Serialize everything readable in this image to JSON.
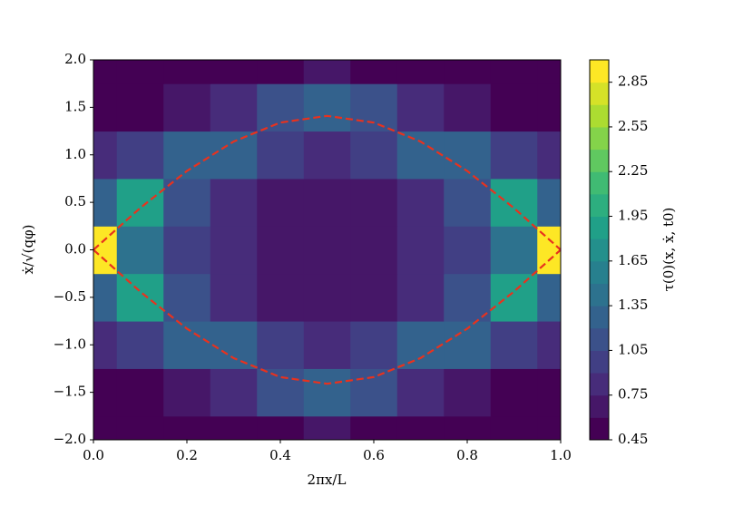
{
  "chart_data": {
    "type": "contour",
    "xlabel": "2πx/L",
    "ylabel": "ẋ/√(qφ)",
    "colorbar_label": "τ(0)(x, ẋ, t0)",
    "colormap": "viridis",
    "xlim": [
      0,
      1
    ],
    "ylim": [
      -2,
      2
    ],
    "xticks": [
      {
        "value": 0,
        "label": "0.0"
      },
      {
        "value": 0.2,
        "label": "0.2"
      },
      {
        "value": 0.4,
        "label": "0.4"
      },
      {
        "value": 0.6,
        "label": "0.6"
      },
      {
        "value": 0.8,
        "label": "0.8"
      },
      {
        "value": 1,
        "label": "1.0"
      }
    ],
    "yticks": [
      {
        "value": -2,
        "label": "−2.0"
      },
      {
        "value": -1.5,
        "label": "−1.5"
      },
      {
        "value": -1,
        "label": "−1.0"
      },
      {
        "value": -0.5,
        "label": "−0.5"
      },
      {
        "value": 0,
        "label": "0.0"
      },
      {
        "value": 0.5,
        "label": "0.5"
      },
      {
        "value": 1,
        "label": "1.0"
      },
      {
        "value": 1.5,
        "label": "1.5"
      },
      {
        "value": 2,
        "label": "2.0"
      }
    ],
    "grid_x": [
      0,
      0.1,
      0.2,
      0.3,
      0.4,
      0.5,
      0.6,
      0.7,
      0.8,
      0.9,
      1
    ],
    "grid_y": [
      -2,
      -1.5,
      -1,
      -0.5,
      0,
      0.5,
      1,
      1.5,
      2
    ],
    "z": [
      [
        0.45,
        0.45,
        0.45,
        0.5,
        0.57,
        0.6,
        0.57,
        0.5,
        0.45,
        0.45,
        0.45
      ],
      [
        0.56,
        0.59,
        0.69,
        0.86,
        1.13,
        1.33,
        1.13,
        0.86,
        0.69,
        0.59,
        0.56
      ],
      [
        0.84,
        0.92,
        1.25,
        1.25,
        0.92,
        0.84,
        0.92,
        1.25,
        1.25,
        0.92,
        0.84
      ],
      [
        1.33,
        1.83,
        1.13,
        0.82,
        0.69,
        0.65,
        0.69,
        0.82,
        1.13,
        1.83,
        1.33
      ],
      [
        3.0,
        1.42,
        0.97,
        0.75,
        0.63,
        0.6,
        0.63,
        0.75,
        0.97,
        1.42,
        3.0
      ],
      [
        1.33,
        1.83,
        1.13,
        0.82,
        0.69,
        0.65,
        0.69,
        0.82,
        1.13,
        1.83,
        1.33
      ],
      [
        0.84,
        0.92,
        1.25,
        1.25,
        0.92,
        0.84,
        0.92,
        1.25,
        1.25,
        0.92,
        0.84
      ],
      [
        0.56,
        0.59,
        0.69,
        0.86,
        1.13,
        1.33,
        1.13,
        0.86,
        0.69,
        0.59,
        0.56
      ],
      [
        0.45,
        0.45,
        0.45,
        0.5,
        0.57,
        0.6,
        0.57,
        0.5,
        0.45,
        0.45,
        0.45
      ]
    ],
    "levels": [
      0.45,
      0.6,
      0.75,
      0.9,
      1.05,
      1.2,
      1.35,
      1.5,
      1.65,
      1.8,
      1.95,
      2.1,
      2.25,
      2.4,
      2.55,
      2.7,
      2.85,
      3.0
    ],
    "cticks": [
      0.45,
      0.75,
      1.05,
      1.35,
      1.65,
      1.95,
      2.25,
      2.55,
      2.85
    ],
    "x": [
      0,
      0.1,
      0.2,
      0.3,
      0.4,
      0.5,
      0.6,
      0.7,
      0.8,
      0.9,
      1
    ],
    "series": [
      {
        "color": "#e8321e",
        "values": [
          0,
          0.44,
          0.83,
          1.14,
          1.34,
          1.41,
          1.34,
          1.14,
          0.83,
          0.44,
          0
        ]
      },
      {
        "color": "#e8321e",
        "values": [
          0,
          -0.44,
          -0.83,
          -1.14,
          -1.34,
          -1.41,
          -1.34,
          -1.14,
          -0.83,
          -0.44,
          0
        ]
      }
    ]
  }
}
